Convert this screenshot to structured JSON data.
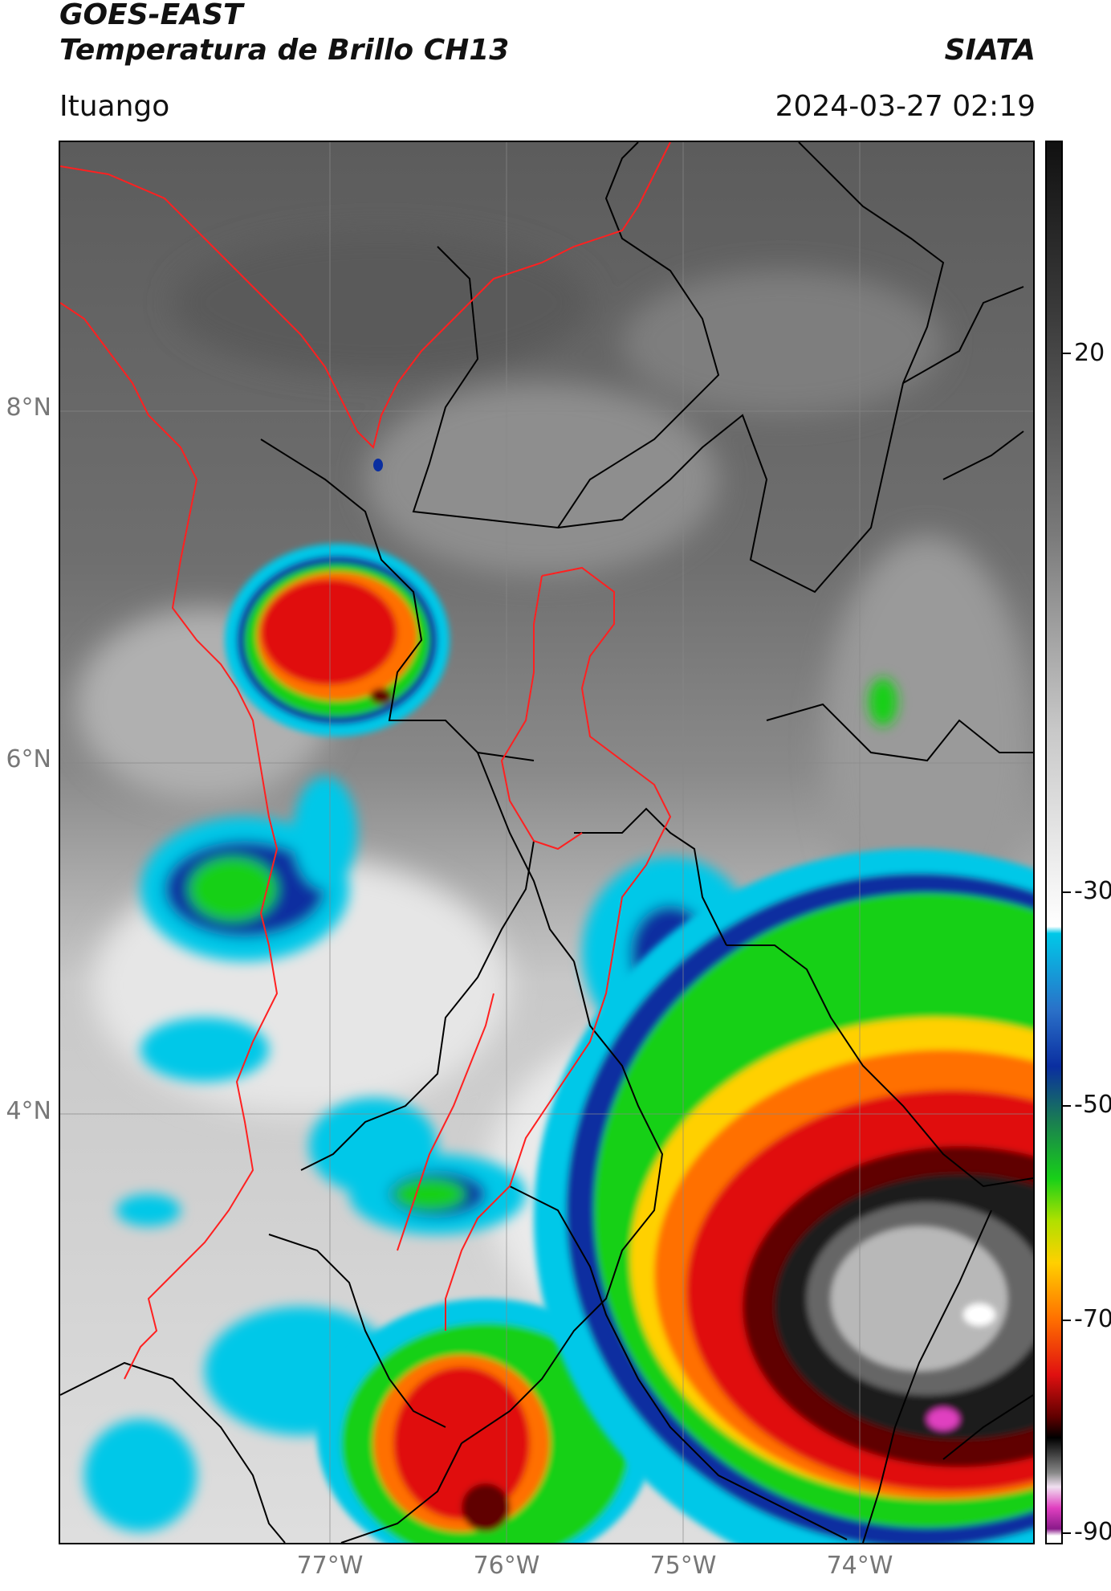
{
  "header": {
    "satellite": "GOES-EAST",
    "product": "Temperatura de Brillo CH13",
    "brand": "SIATA",
    "location": "Ituango",
    "datetime": "2024-03-27 02:19"
  },
  "map": {
    "lat_ticks": [
      {
        "label": "8°N",
        "value": 8
      },
      {
        "label": "6°N",
        "value": 6
      },
      {
        "label": "4°N",
        "value": 4
      }
    ],
    "lon_ticks": [
      {
        "label": "77°W",
        "value": -77
      },
      {
        "label": "76°W",
        "value": -76
      },
      {
        "label": "75°W",
        "value": -75
      },
      {
        "label": "74°W",
        "value": -74
      }
    ],
    "boundary_colors": {
      "international": "#ff2020",
      "departments": "#000000",
      "basin": "#ff2020"
    }
  },
  "colorbar": {
    "ticks": [
      "20",
      "-30",
      "-50",
      "-70",
      "-90"
    ],
    "colors": {
      "warm": "#5a5a5a",
      "white": "#f2f2f2",
      "cyan": "#00c8e8",
      "blue": "#0a2ea0",
      "green": "#18d018",
      "yellow": "#ffd000",
      "orange": "#ff7000",
      "red": "#e01010",
      "darkred": "#600000",
      "black": "#000000",
      "magenta": "#e040c0",
      "purple": "#8a1a8a"
    }
  }
}
